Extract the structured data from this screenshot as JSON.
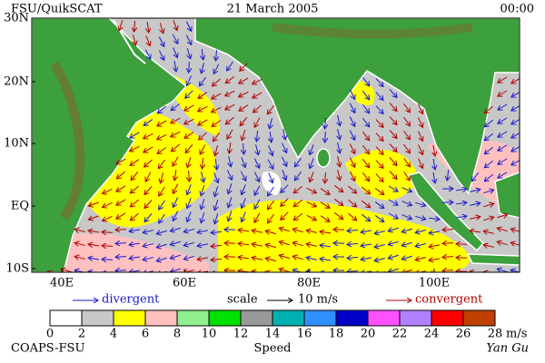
{
  "header": {
    "source": "FSU/QuikSCAT",
    "date": "21 March 2005",
    "time": "00:00"
  },
  "map": {
    "lat_labels": [
      "30N",
      "20N",
      "10N",
      "EQ",
      "10S"
    ],
    "lon_labels": [
      "40E",
      "60E",
      "80E",
      "100E"
    ]
  },
  "legend": {
    "divergent": "divergent",
    "scale": "scale",
    "scale_value": "10 m/s",
    "convergent": "convergent"
  },
  "speed_scale": {
    "ticks": [
      0,
      2,
      4,
      6,
      8,
      10,
      12,
      14,
      16,
      18,
      20,
      22,
      24,
      26,
      28
    ],
    "unit": "m/s",
    "label": "Speed",
    "colors": [
      "#ffffff",
      "#c8c8c8",
      "#ffff00",
      "#ffc0c0",
      "#90f090",
      "#00e000",
      "#999999",
      "#00b0b0",
      "#3090ff",
      "#0000c8",
      "#ff50ff",
      "#b080ff",
      "#ff0000",
      "#c04000"
    ]
  },
  "footer": {
    "left": "COAPS-FSU",
    "right": "Yan Gu"
  }
}
